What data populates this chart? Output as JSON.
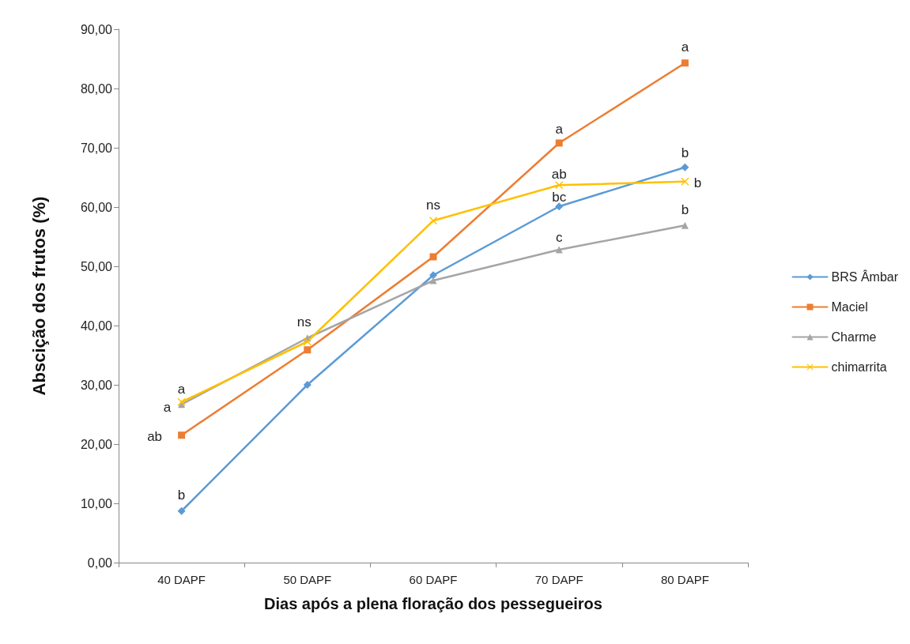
{
  "chart_data": {
    "type": "line",
    "xlabel": "Dias após a plena floração dos pessegueiros",
    "ylabel": "Abscição dos frutos (%)",
    "categories": [
      "40 DAPF",
      "50 DAPF",
      "60 DAPF",
      "70 DAPF",
      "80 DAPF"
    ],
    "series": [
      {
        "name": "BRS Âmbar",
        "color": "#5b9bd5",
        "marker": "diamond",
        "values": [
          8.7,
          30.0,
          48.5,
          60.1,
          66.7
        ]
      },
      {
        "name": "Maciel",
        "color": "#ed7d31",
        "marker": "square",
        "values": [
          21.5,
          35.9,
          51.6,
          70.8,
          84.3
        ]
      },
      {
        "name": "Charme",
        "color": "#a5a5a5",
        "marker": "triangle",
        "values": [
          26.7,
          37.9,
          47.6,
          52.8,
          56.9
        ]
      },
      {
        "name": "chimarrita",
        "color": "#ffc000",
        "marker": "cross",
        "values": [
          27.1,
          37.3,
          57.7,
          63.7,
          64.3
        ]
      }
    ],
    "ylim": [
      0,
      90
    ],
    "yticks": [
      {
        "value": 0,
        "label": "0,00"
      },
      {
        "value": 10,
        "label": "10,00"
      },
      {
        "value": 20,
        "label": "20,00"
      },
      {
        "value": 30,
        "label": "30,00"
      },
      {
        "value": 40,
        "label": "40,00"
      },
      {
        "value": 50,
        "label": "50,00"
      },
      {
        "value": 60,
        "label": "60,00"
      },
      {
        "value": 70,
        "label": "70,00"
      },
      {
        "value": 80,
        "label": "80,00"
      },
      {
        "value": 90,
        "label": "90,00"
      }
    ],
    "grid": false,
    "legend": "right",
    "line_style": "solid",
    "annotations": [
      {
        "text": "b",
        "x": "40 DAPF",
        "y": 8.7
      },
      {
        "text": "ab",
        "x": "40 DAPF",
        "y": 21.5
      },
      {
        "text": "a",
        "x": "40 DAPF",
        "y": 26.7
      },
      {
        "text": "a",
        "x": "40 DAPF",
        "y": 27.1
      },
      {
        "text": "ns",
        "x": "50 DAPF",
        "y": 37.9
      },
      {
        "text": "ns",
        "x": "60 DAPF",
        "y": 57.7
      },
      {
        "text": "a",
        "x": "70 DAPF",
        "y": 70.8
      },
      {
        "text": "ab",
        "x": "70 DAPF",
        "y": 63.7
      },
      {
        "text": "bc",
        "x": "70 DAPF",
        "y": 60.1
      },
      {
        "text": "c",
        "x": "70 DAPF",
        "y": 52.8
      },
      {
        "text": "a",
        "x": "80 DAPF",
        "y": 84.3
      },
      {
        "text": "b",
        "x": "80 DAPF",
        "y": 66.7
      },
      {
        "text": "b",
        "x": "80 DAPF",
        "y": 64.3
      },
      {
        "text": "b",
        "x": "80 DAPF",
        "y": 56.9
      }
    ]
  }
}
